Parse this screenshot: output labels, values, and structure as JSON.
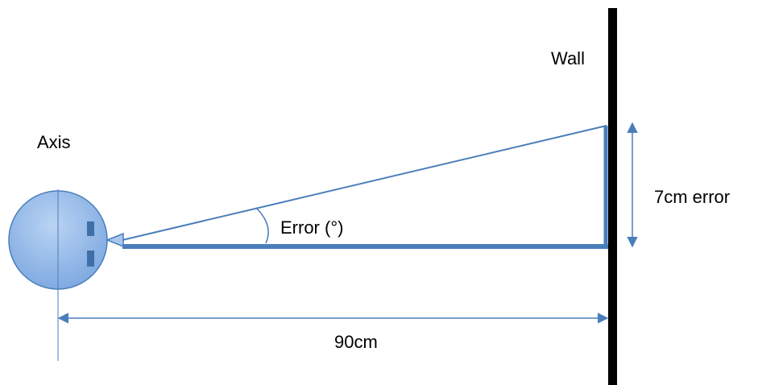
{
  "labels": {
    "wall": "Wall",
    "axis": "Axis",
    "angle": "Error (°)",
    "vertical_error": "7cm error",
    "distance": "90cm"
  }
}
